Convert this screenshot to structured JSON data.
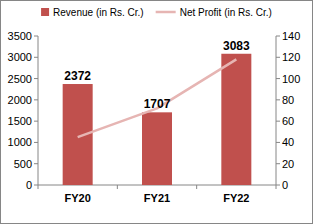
{
  "chart_data": {
    "type": "bar",
    "categories": [
      "FY20",
      "FY21",
      "FY22"
    ],
    "series": [
      {
        "name": "Revenue (in Rs. Cr.)",
        "type": "bar",
        "color": "#c0504d",
        "values": [
          2372,
          1707,
          3083
        ],
        "data_labels": true
      },
      {
        "name": "Net Profit (in Rs. Cr.)",
        "type": "line",
        "color": "#e6b5b3",
        "values": [
          45,
          72,
          118
        ],
        "axis": "y2"
      }
    ],
    "ylim": [
      0,
      3500
    ],
    "yticks": [
      0,
      500,
      1000,
      1500,
      2000,
      2500,
      3000,
      3500
    ],
    "y2lim": [
      0,
      140
    ],
    "y2ticks": [
      0,
      20,
      40,
      60,
      80,
      100,
      120,
      140
    ],
    "grid": false,
    "legend": "top"
  }
}
